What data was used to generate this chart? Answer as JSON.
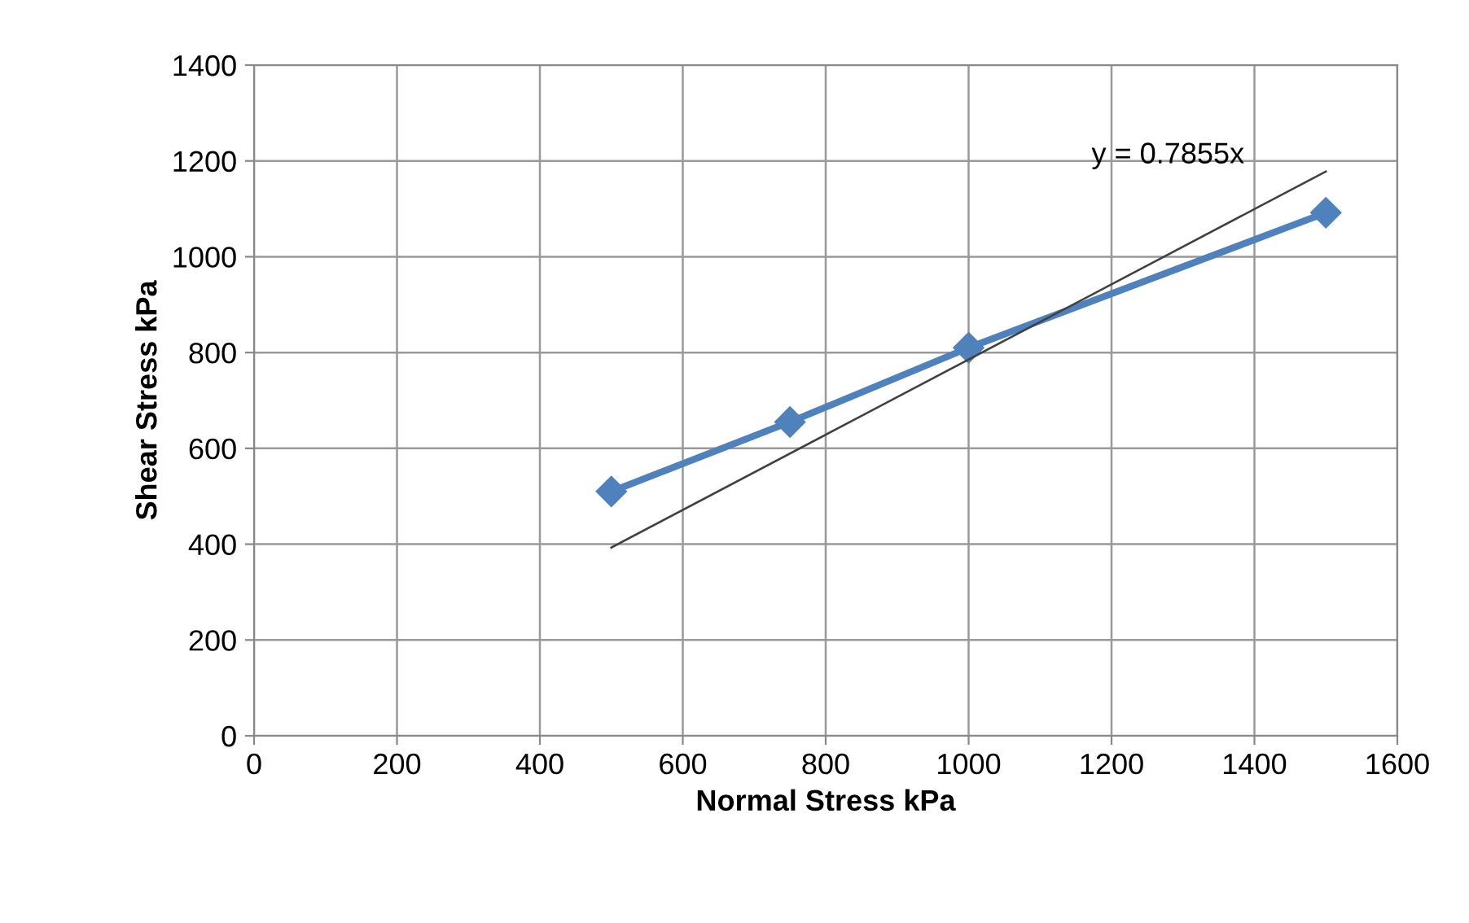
{
  "chart_data": {
    "type": "line",
    "xlabel": "Normal Stress kPa",
    "ylabel": "Shear Stress kPa",
    "x": [
      500,
      750,
      1000,
      1500
    ],
    "series": [
      {
        "color": "#4f81bd",
        "values": [
          510,
          655,
          810,
          1092
        ],
        "marker": "diamond"
      },
      {
        "type": "line",
        "color": "#404040",
        "x": [
          500,
          1500
        ],
        "values": [
          393,
          1178
        ]
      }
    ],
    "xlim": [
      0,
      1600
    ],
    "xticks": [
      0,
      200,
      400,
      600,
      800,
      1000,
      1200,
      1400,
      1600
    ],
    "ylim": [
      0,
      1400
    ],
    "yticks": [
      0,
      200,
      400,
      600,
      800,
      1000,
      1200,
      1400
    ],
    "grid": true,
    "legend": false,
    "annotations": [
      "y = 0.7855x"
    ]
  }
}
